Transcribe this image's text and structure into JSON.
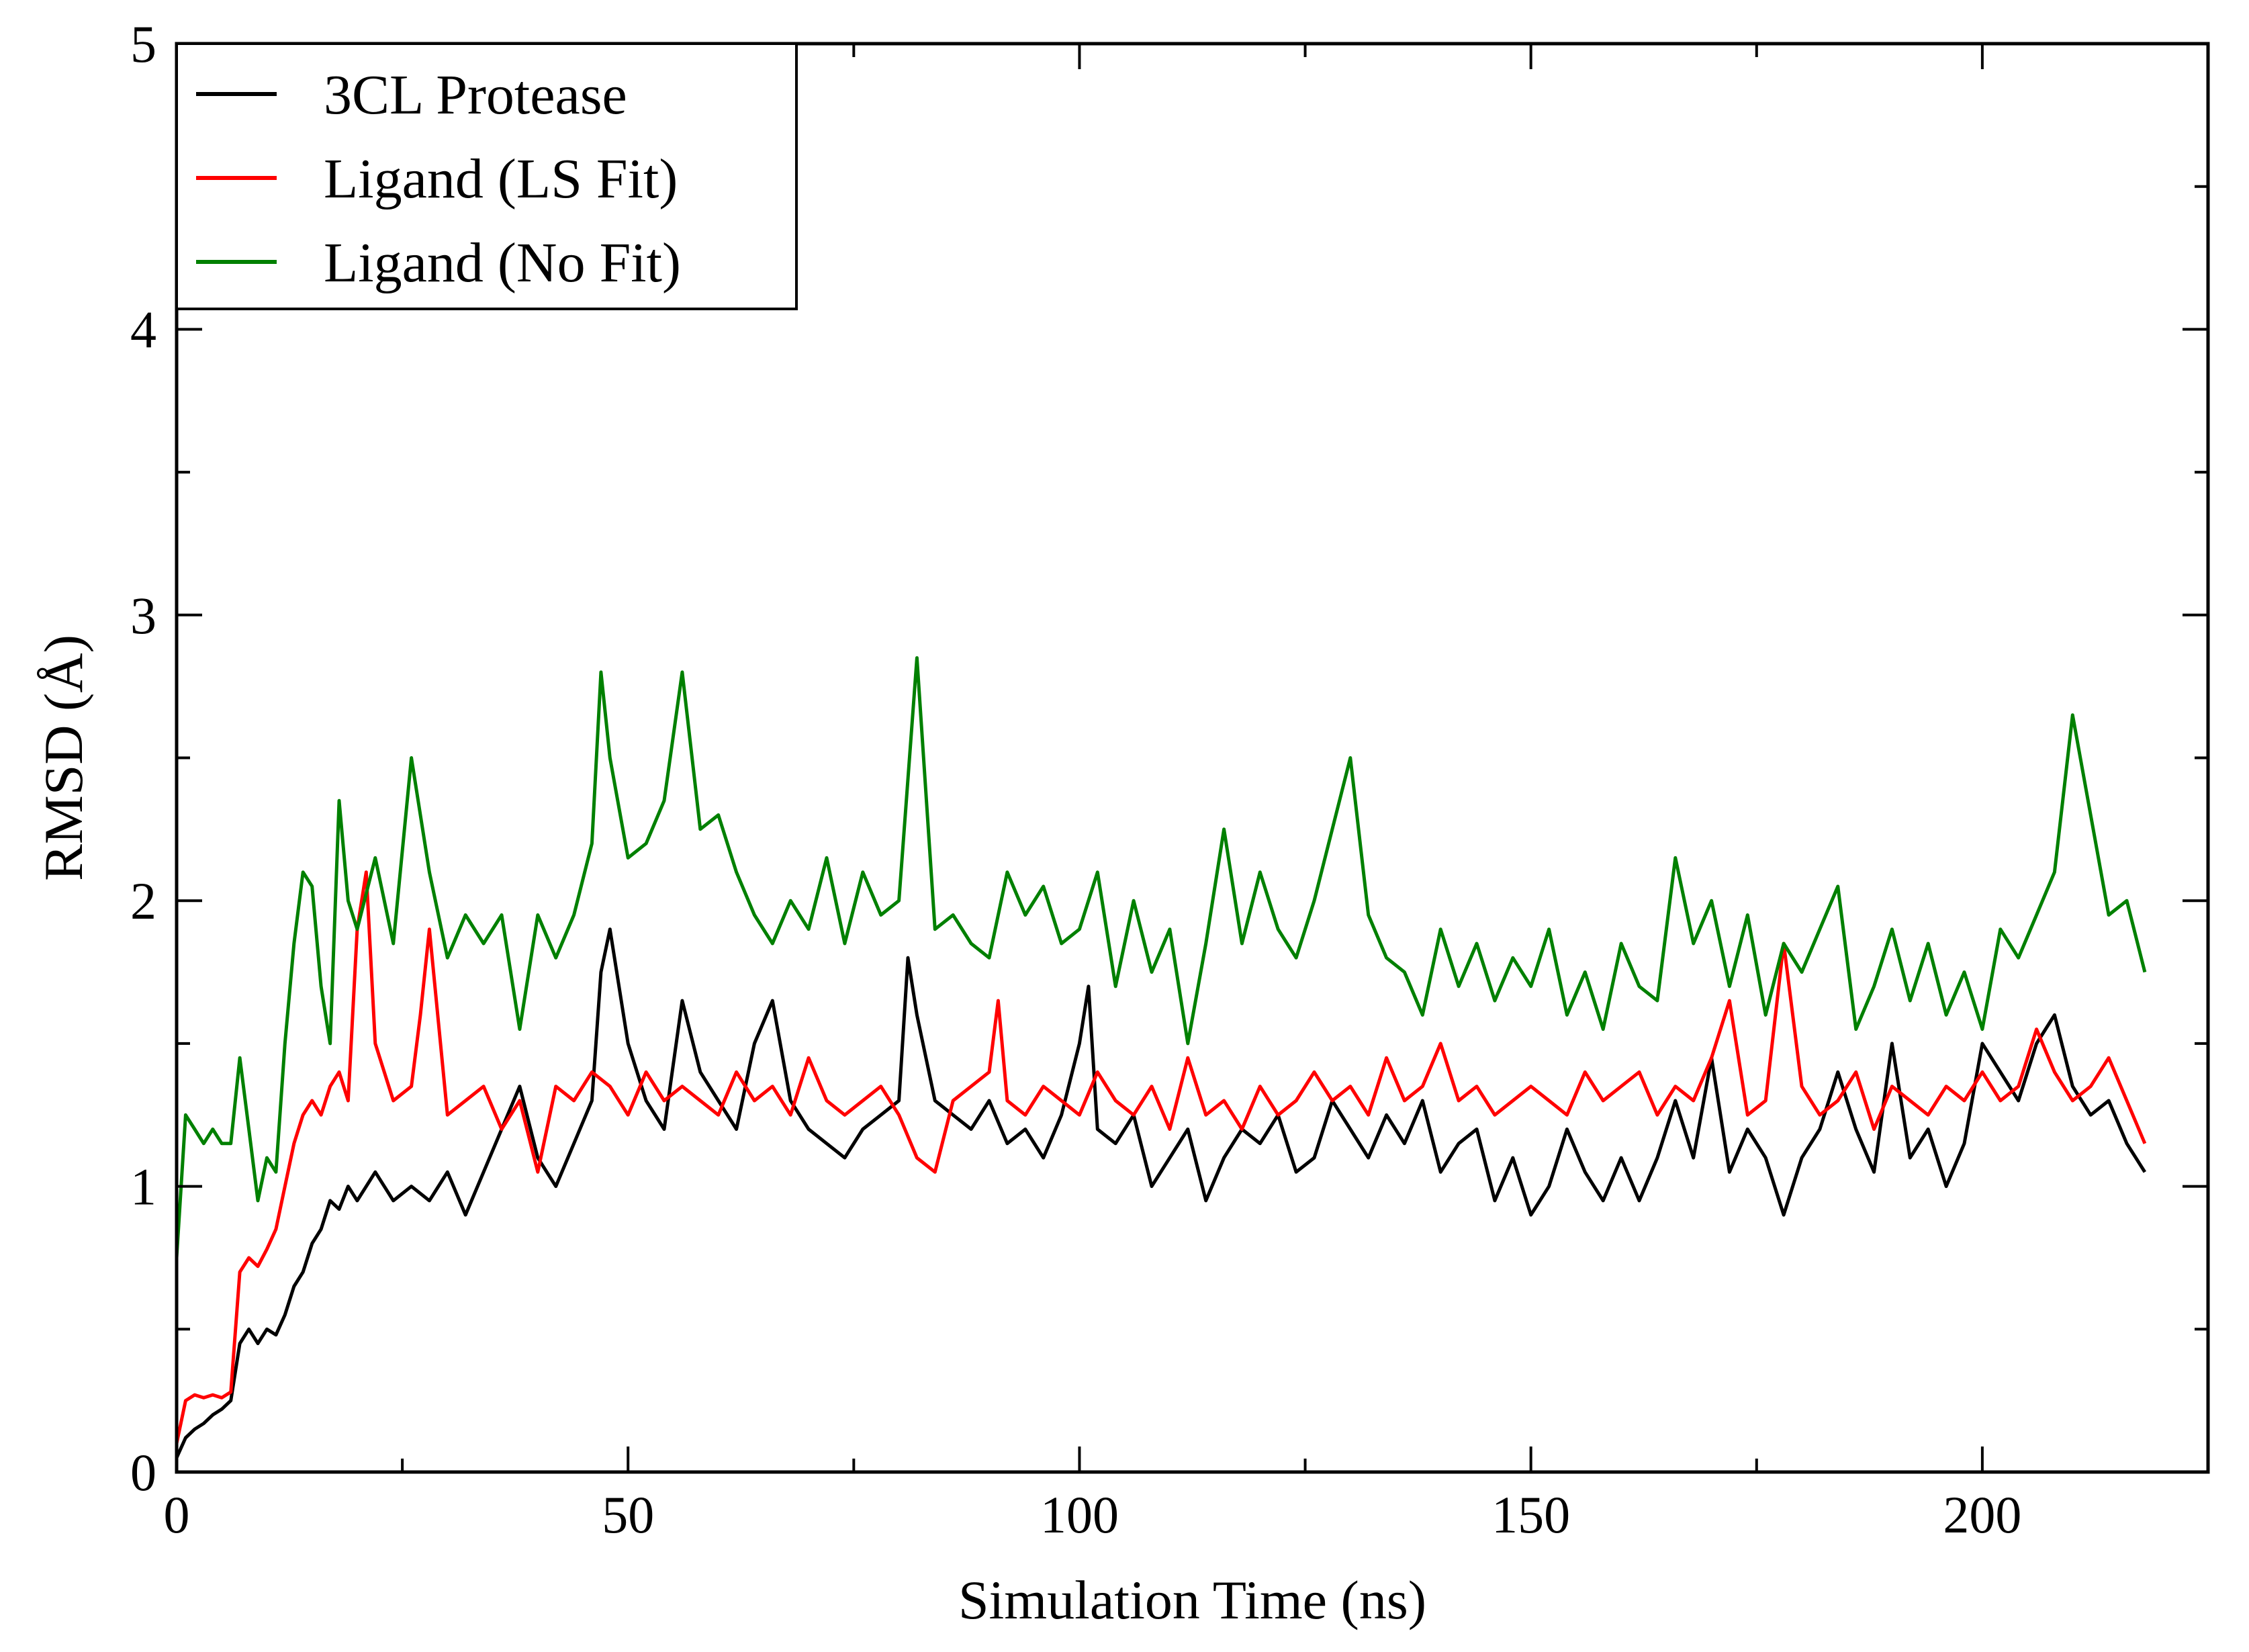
{
  "chart_data": {
    "type": "line",
    "title": "",
    "xlabel": "Simulation Time (ns)",
    "ylabel": "RMSD (Å)",
    "xlim": [
      0,
      225
    ],
    "ylim": [
      0,
      5
    ],
    "x_major_ticks": [
      0,
      50,
      100,
      150,
      200
    ],
    "x_tick_labels": [
      "0",
      "50",
      "100",
      "150",
      "200"
    ],
    "x_minor_ticks": [
      25,
      75,
      125,
      175,
      225
    ],
    "y_major_ticks": [
      0,
      1,
      2,
      3,
      4,
      5
    ],
    "y_tick_labels": [
      "0",
      "1",
      "2",
      "3",
      "4",
      "5"
    ],
    "y_minor_ticks": [
      0.5,
      1.5,
      2.5,
      3.5,
      4.5
    ],
    "grid": false,
    "legend_position": "top-left",
    "series": [
      {
        "name": "3CL Protease",
        "color": "#000000",
        "x": [
          0,
          1,
          2,
          3,
          4,
          5,
          6,
          7,
          8,
          9,
          10,
          11,
          12,
          13,
          14,
          15,
          16,
          17,
          18,
          19,
          20,
          22,
          24,
          26,
          28,
          30,
          32,
          34,
          36,
          38,
          40,
          42,
          44,
          46,
          47,
          48,
          50,
          52,
          54,
          56,
          58,
          60,
          62,
          64,
          66,
          68,
          70,
          72,
          74,
          76,
          78,
          80,
          81,
          82,
          84,
          86,
          88,
          90,
          92,
          94,
          96,
          98,
          100,
          101,
          102,
          104,
          106,
          108,
          110,
          112,
          114,
          116,
          118,
          120,
          122,
          124,
          126,
          128,
          130,
          132,
          134,
          136,
          138,
          140,
          142,
          144,
          146,
          148,
          150,
          152,
          154,
          156,
          158,
          160,
          162,
          164,
          166,
          168,
          170,
          172,
          174,
          176,
          178,
          180,
          182,
          184,
          186,
          188,
          190,
          192,
          194,
          196,
          198,
          200,
          202,
          204,
          206,
          208,
          210,
          212,
          214,
          216,
          218
        ],
        "values": [
          0.05,
          0.12,
          0.15,
          0.17,
          0.2,
          0.22,
          0.25,
          0.45,
          0.5,
          0.45,
          0.5,
          0.48,
          0.55,
          0.65,
          0.7,
          0.8,
          0.85,
          0.95,
          0.92,
          1.0,
          0.95,
          1.05,
          0.95,
          1.0,
          0.95,
          1.05,
          0.9,
          1.05,
          1.2,
          1.35,
          1.1,
          1.0,
          1.15,
          1.3,
          1.75,
          1.9,
          1.5,
          1.3,
          1.2,
          1.65,
          1.4,
          1.3,
          1.2,
          1.5,
          1.65,
          1.3,
          1.2,
          1.15,
          1.1,
          1.2,
          1.25,
          1.3,
          1.8,
          1.6,
          1.3,
          1.25,
          1.2,
          1.3,
          1.15,
          1.2,
          1.1,
          1.25,
          1.5,
          1.7,
          1.2,
          1.15,
          1.25,
          1.0,
          1.1,
          1.2,
          0.95,
          1.1,
          1.2,
          1.15,
          1.25,
          1.05,
          1.1,
          1.3,
          1.2,
          1.1,
          1.25,
          1.15,
          1.3,
          1.05,
          1.15,
          1.2,
          0.95,
          1.1,
          0.9,
          1.0,
          1.2,
          1.05,
          0.95,
          1.1,
          0.95,
          1.1,
          1.3,
          1.1,
          1.45,
          1.05,
          1.2,
          1.1,
          0.9,
          1.1,
          1.2,
          1.4,
          1.2,
          1.05,
          1.5,
          1.1,
          1.2,
          1.0,
          1.15,
          1.5,
          1.4,
          1.3,
          1.5,
          1.6,
          1.35,
          1.25,
          1.3,
          1.15,
          1.05
        ]
      },
      {
        "name": "Ligand (LS Fit)",
        "color": "#ff0000",
        "x": [
          0,
          1,
          2,
          3,
          4,
          5,
          6,
          7,
          8,
          9,
          10,
          11,
          12,
          13,
          14,
          15,
          16,
          17,
          18,
          19,
          20,
          21,
          22,
          24,
          26,
          27,
          28,
          30,
          32,
          34,
          36,
          38,
          40,
          42,
          44,
          46,
          48,
          50,
          52,
          54,
          56,
          58,
          60,
          62,
          64,
          66,
          68,
          70,
          72,
          74,
          76,
          78,
          80,
          82,
          84,
          86,
          88,
          90,
          91,
          92,
          94,
          96,
          98,
          100,
          102,
          104,
          106,
          108,
          110,
          112,
          114,
          116,
          118,
          120,
          122,
          124,
          126,
          128,
          130,
          132,
          134,
          136,
          138,
          140,
          142,
          144,
          146,
          148,
          150,
          152,
          154,
          156,
          158,
          160,
          162,
          164,
          166,
          168,
          170,
          172,
          174,
          176,
          178,
          180,
          182,
          184,
          186,
          188,
          190,
          192,
          194,
          196,
          198,
          200,
          202,
          204,
          206,
          208,
          210,
          212,
          214,
          216,
          218
        ],
        "values": [
          0.1,
          0.25,
          0.27,
          0.26,
          0.27,
          0.26,
          0.28,
          0.7,
          0.75,
          0.72,
          0.78,
          0.85,
          1.0,
          1.15,
          1.25,
          1.3,
          1.25,
          1.35,
          1.4,
          1.3,
          1.9,
          2.1,
          1.5,
          1.3,
          1.35,
          1.6,
          1.9,
          1.25,
          1.3,
          1.35,
          1.2,
          1.3,
          1.05,
          1.35,
          1.3,
          1.4,
          1.35,
          1.25,
          1.4,
          1.3,
          1.35,
          1.3,
          1.25,
          1.4,
          1.3,
          1.35,
          1.25,
          1.45,
          1.3,
          1.25,
          1.3,
          1.35,
          1.25,
          1.1,
          1.05,
          1.3,
          1.35,
          1.4,
          1.65,
          1.3,
          1.25,
          1.35,
          1.3,
          1.25,
          1.4,
          1.3,
          1.25,
          1.35,
          1.2,
          1.45,
          1.25,
          1.3,
          1.2,
          1.35,
          1.25,
          1.3,
          1.4,
          1.3,
          1.35,
          1.25,
          1.45,
          1.3,
          1.35,
          1.5,
          1.3,
          1.35,
          1.25,
          1.3,
          1.35,
          1.3,
          1.25,
          1.4,
          1.3,
          1.35,
          1.4,
          1.25,
          1.35,
          1.3,
          1.45,
          1.65,
          1.25,
          1.3,
          1.85,
          1.35,
          1.25,
          1.3,
          1.4,
          1.2,
          1.35,
          1.3,
          1.25,
          1.35,
          1.3,
          1.4,
          1.3,
          1.35,
          1.55,
          1.4,
          1.3,
          1.35,
          1.45,
          1.3,
          1.15
        ]
      },
      {
        "name": "Ligand (No Fit)",
        "color": "#008000",
        "x": [
          0,
          1,
          2,
          3,
          4,
          5,
          6,
          7,
          8,
          9,
          10,
          11,
          12,
          13,
          14,
          15,
          16,
          17,
          18,
          19,
          20,
          22,
          24,
          26,
          28,
          30,
          32,
          34,
          36,
          38,
          40,
          42,
          44,
          46,
          47,
          48,
          50,
          52,
          54,
          56,
          58,
          60,
          62,
          64,
          66,
          68,
          70,
          72,
          74,
          76,
          78,
          80,
          82,
          84,
          86,
          88,
          90,
          92,
          94,
          96,
          98,
          100,
          102,
          104,
          106,
          108,
          110,
          112,
          114,
          116,
          118,
          120,
          122,
          124,
          126,
          128,
          130,
          132,
          134,
          136,
          138,
          140,
          142,
          144,
          146,
          148,
          150,
          152,
          154,
          156,
          158,
          160,
          162,
          164,
          166,
          168,
          170,
          172,
          174,
          176,
          178,
          180,
          182,
          184,
          186,
          188,
          190,
          192,
          194,
          196,
          198,
          200,
          202,
          204,
          206,
          208,
          210,
          212,
          214,
          216,
          218
        ],
        "values": [
          0.75,
          1.25,
          1.2,
          1.15,
          1.2,
          1.15,
          1.15,
          1.45,
          1.2,
          0.95,
          1.1,
          1.05,
          1.5,
          1.85,
          2.1,
          2.05,
          1.7,
          1.5,
          2.35,
          2.0,
          1.9,
          2.15,
          1.85,
          2.5,
          2.1,
          1.8,
          1.95,
          1.85,
          1.95,
          1.55,
          1.95,
          1.8,
          1.95,
          2.2,
          2.8,
          2.5,
          2.15,
          2.2,
          2.35,
          2.8,
          2.25,
          2.3,
          2.1,
          1.95,
          1.85,
          2.0,
          1.9,
          2.15,
          1.85,
          2.1,
          1.95,
          2.0,
          2.85,
          1.9,
          1.95,
          1.85,
          1.8,
          2.1,
          1.95,
          2.05,
          1.85,
          1.9,
          2.1,
          1.7,
          2.0,
          1.75,
          1.9,
          1.5,
          1.85,
          2.25,
          1.85,
          2.1,
          1.9,
          1.8,
          2.0,
          2.25,
          2.5,
          1.95,
          1.8,
          1.75,
          1.6,
          1.9,
          1.7,
          1.85,
          1.65,
          1.8,
          1.7,
          1.9,
          1.6,
          1.75,
          1.55,
          1.85,
          1.7,
          1.65,
          2.15,
          1.85,
          2.0,
          1.7,
          1.95,
          1.6,
          1.85,
          1.75,
          1.9,
          2.05,
          1.55,
          1.7,
          1.9,
          1.65,
          1.85,
          1.6,
          1.75,
          1.55,
          1.9,
          1.8,
          1.95,
          2.1,
          2.65,
          2.3,
          1.95,
          2.0,
          1.75
        ]
      }
    ]
  }
}
